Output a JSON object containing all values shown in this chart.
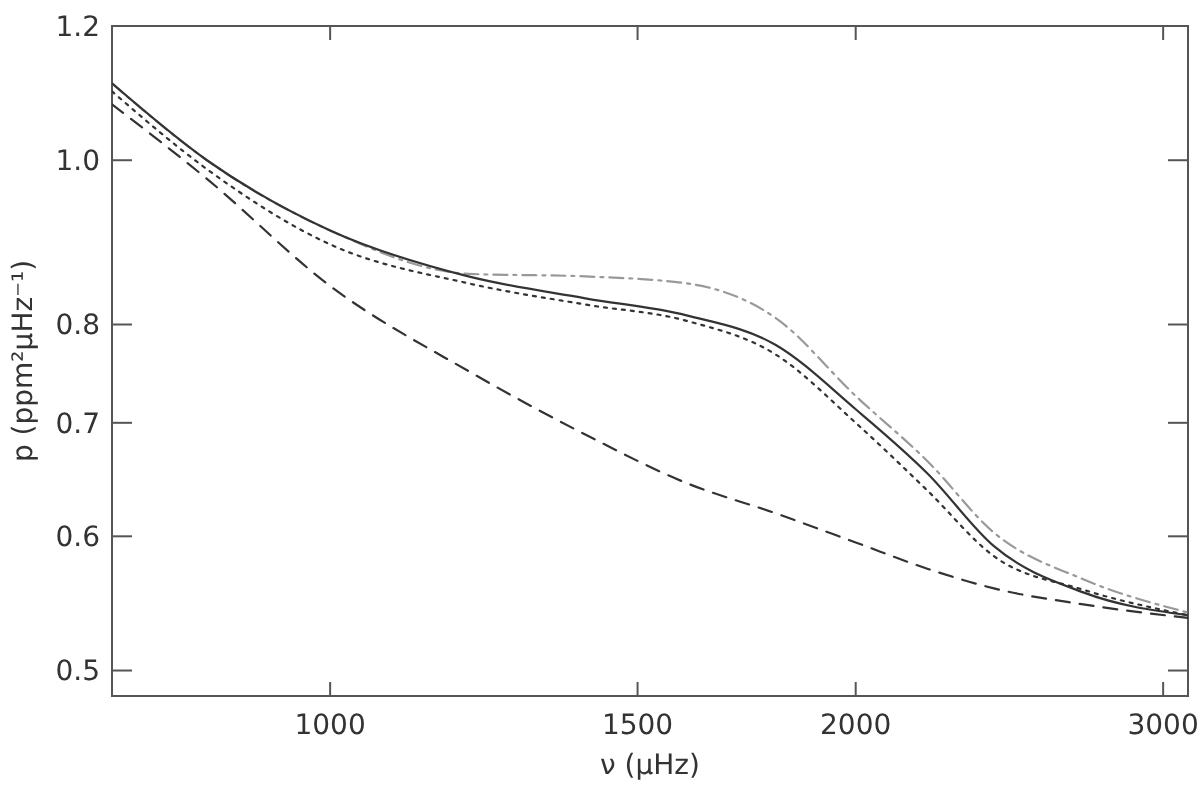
{
  "chart_data": {
    "type": "line",
    "xlabel": "ν (μHz)",
    "ylabel": "p (ppm²μHz⁻¹)",
    "log": "xy",
    "xlim": [
      750,
      3100
    ],
    "ylim": [
      0.483,
      1.2
    ],
    "xticks": [
      1000,
      1500,
      2000,
      3000
    ],
    "yticks": [
      {
        "value": 0.5,
        "label": "0.5"
      },
      {
        "value": 0.6,
        "label": "0.6"
      },
      {
        "value": 0.7,
        "label": "0.7"
      },
      {
        "value": 0.8,
        "label": "0.8"
      },
      {
        "value": 1,
        "label": "1.0"
      },
      {
        "value": 1.2,
        "label": "1.2"
      }
    ],
    "x": [
      750,
      850,
      1000,
      1200,
      1400,
      1600,
      1800,
      2000,
      2200,
      2400,
      2700,
      3100
    ],
    "series": [
      {
        "color": "#999999",
        "line_style": "dashdot",
        "values": [
          1.11,
          1.0,
          0.909,
          0.857,
          0.854,
          0.846,
          0.807,
          0.726,
          0.664,
          0.603,
          0.566,
          0.541
        ]
      },
      {
        "color": "#333333",
        "line_style": "solid",
        "values": [
          1.11,
          1.0,
          0.909,
          0.854,
          0.829,
          0.81,
          0.778,
          0.713,
          0.653,
          0.592,
          0.556,
          0.539
        ]
      },
      {
        "color": "#333333",
        "line_style": "dotted",
        "values": [
          1.098,
          0.988,
          0.892,
          0.846,
          0.822,
          0.804,
          0.768,
          0.7,
          0.638,
          0.584,
          0.558,
          0.539
        ]
      },
      {
        "color": "#333333",
        "line_style": "dashed",
        "values": [
          1.079,
          0.975,
          0.843,
          0.751,
          0.689,
          0.645,
          0.619,
          0.595,
          0.574,
          0.559,
          0.547,
          0.537
        ]
      }
    ]
  }
}
